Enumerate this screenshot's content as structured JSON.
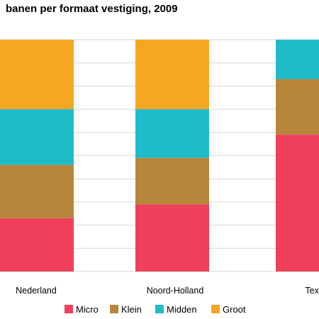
{
  "chart_data": {
    "type": "bar",
    "stacked": true,
    "percent": true,
    "title": "banen per formaat vestiging, 2009",
    "categories": [
      "Nederland",
      "Noord-Holland",
      "Texel"
    ],
    "series": [
      {
        "name": "Micro",
        "color": "#ef3f5a",
        "values": [
          23,
          29,
          59
        ]
      },
      {
        "name": "Klein",
        "color": "#b7863b",
        "values": [
          23,
          20,
          24
        ]
      },
      {
        "name": "Midden",
        "color": "#1fbcc8",
        "values": [
          24,
          21,
          17
        ]
      },
      {
        "name": "Groot",
        "color": "#f5a623",
        "values": [
          30,
          30,
          0
        ]
      }
    ],
    "ylim": [
      0,
      100
    ],
    "grid": true,
    "legend_position": "bottom"
  }
}
